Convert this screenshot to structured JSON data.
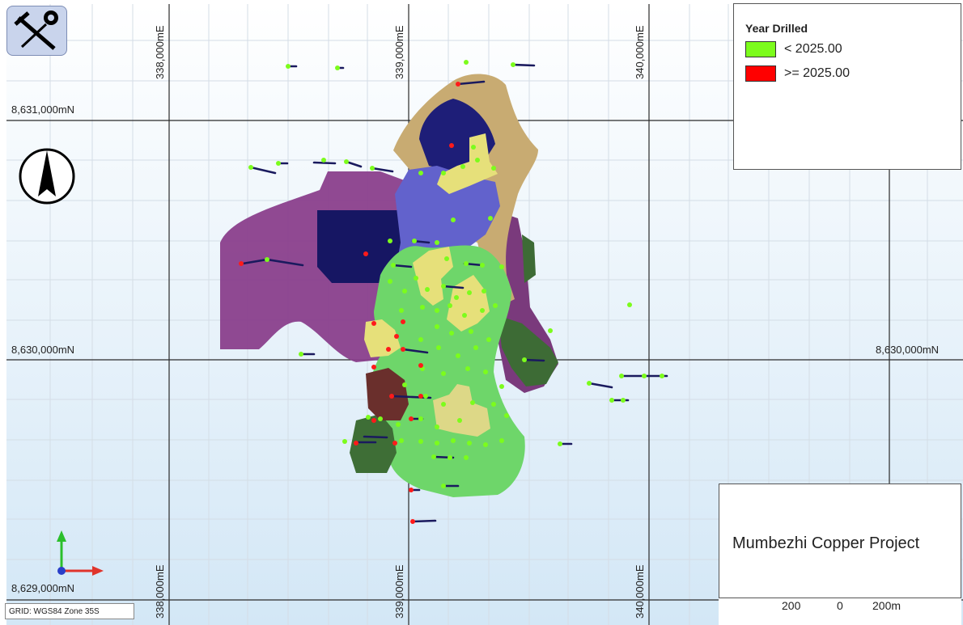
{
  "legend": {
    "title": "Year Drilled",
    "items": [
      {
        "label": "< 2025.00",
        "color": "#7cfc1c"
      },
      {
        "label": ">= 2025.00",
        "color": "#ff0000"
      }
    ]
  },
  "grid": {
    "eastings": [
      "338,000mE",
      "339,000mE",
      "340,000mE"
    ],
    "northings": [
      "8,631,000mN",
      "8,630,000mN",
      "8,629,000mN"
    ],
    "note": "GRID: WGS84 Zone 35S"
  },
  "title": "Mumbezhi Copper Project",
  "scale": {
    "labels": [
      "200",
      "0",
      "200m"
    ]
  },
  "icons": {
    "logo": "pick-and-rose-logo",
    "north": "north-arrow-icon",
    "axes": "axis-triad-icon"
  }
}
